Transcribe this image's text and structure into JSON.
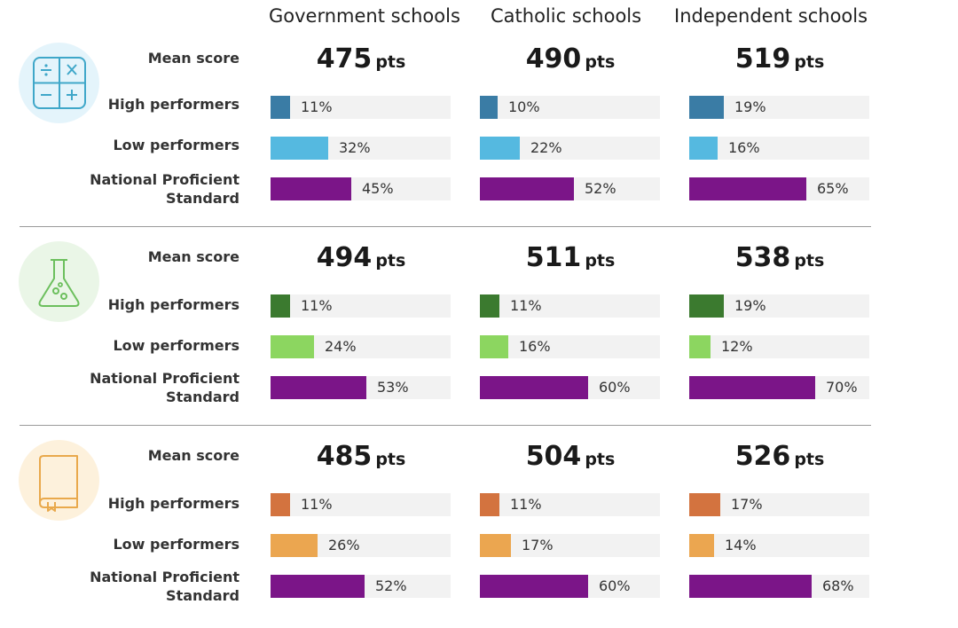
{
  "columns": [
    "Government schools",
    "Catholic schools",
    "Independent schools"
  ],
  "row_labels": {
    "mean": "Mean score",
    "high": "High performers",
    "low": "Low performers",
    "nps": "National Proficient Standard"
  },
  "unit": "pts",
  "colors": {
    "nps": "#7b1588",
    "track": "#f2f2f2"
  },
  "chart_data": {
    "type": "bar",
    "categories": [
      "Government schools",
      "Catholic schools",
      "Independent schools"
    ],
    "xlim": [
      0,
      100
    ],
    "sections": [
      {
        "icon": "math-calculator-icon",
        "icon_bg": "#e4f4fb",
        "icon_color": "#3fa7c9",
        "high_color": "#3a7ca5",
        "low_color": "#55b9e0",
        "mean_score": [
          475,
          490,
          519
        ],
        "high_performers": [
          11,
          10,
          19
        ],
        "low_performers": [
          32,
          22,
          16
        ],
        "national_proficient_standard": [
          45,
          52,
          65
        ]
      },
      {
        "icon": "science-flask-icon",
        "icon_bg": "#eaf6e7",
        "icon_color": "#6cbf5d",
        "high_color": "#3b7a2f",
        "low_color": "#8cd660",
        "mean_score": [
          494,
          511,
          538
        ],
        "high_performers": [
          11,
          11,
          19
        ],
        "low_performers": [
          24,
          16,
          12
        ],
        "national_proficient_standard": [
          53,
          60,
          70
        ]
      },
      {
        "icon": "reading-book-icon",
        "icon_bg": "#fdf1dc",
        "icon_color": "#e9a94c",
        "high_color": "#d3733f",
        "low_color": "#eba650",
        "mean_score": [
          485,
          504,
          526
        ],
        "high_performers": [
          11,
          11,
          17
        ],
        "low_performers": [
          26,
          17,
          14
        ],
        "national_proficient_standard": [
          52,
          60,
          68
        ]
      }
    ]
  }
}
